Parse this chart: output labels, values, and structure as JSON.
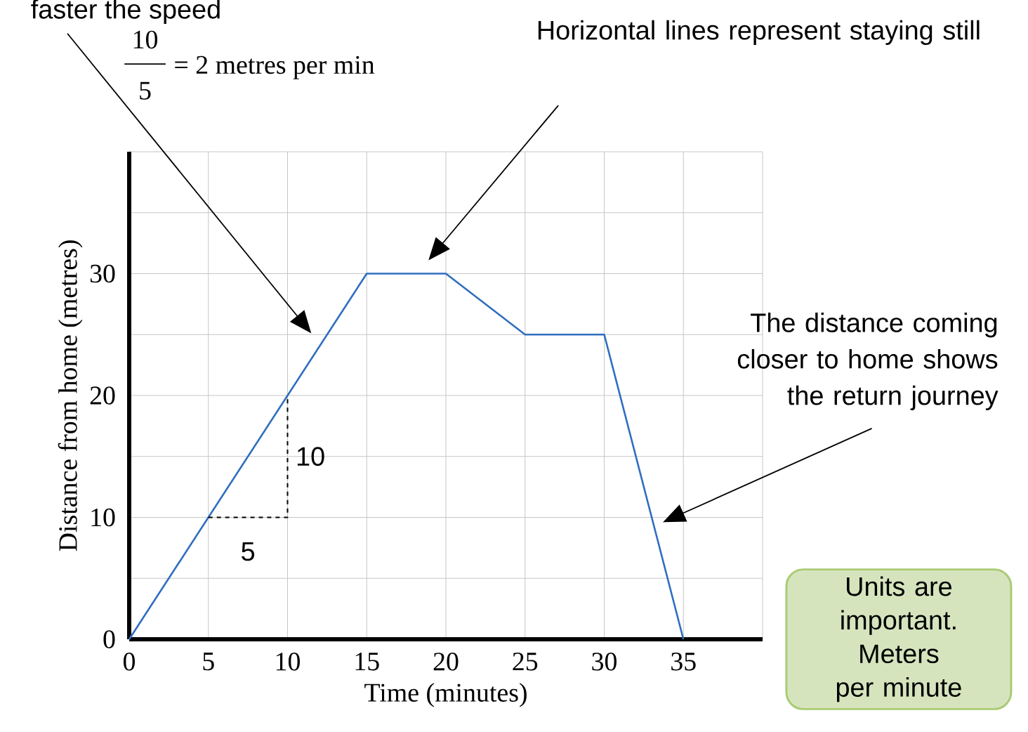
{
  "chart_data": {
    "type": "line",
    "xlabel": "Time (minutes)",
    "ylabel": "Distance from home (metres)",
    "series": [
      {
        "color": "#2f6ebf",
        "x": [
          0,
          15,
          20,
          25,
          30,
          35
        ],
        "values": [
          0,
          30,
          30,
          25,
          25,
          0
        ]
      },
      {
        "color": "#000000",
        "x": [
          5,
          10,
          10
        ],
        "values": [
          10,
          10,
          20
        ],
        "line_style": "dashed"
      }
    ],
    "xlim": [
      0,
      40
    ],
    "ylim": [
      0,
      40
    ],
    "xticks": [
      0,
      5,
      10,
      15,
      20,
      25,
      30,
      35,
      {
        "value": 40,
        "label": null
      }
    ],
    "yticks": [
      0,
      {
        "value": 5,
        "label": null
      },
      10,
      {
        "value": 15,
        "label": null
      },
      20,
      {
        "value": 25,
        "label": null
      },
      30,
      {
        "value": 35,
        "label": null
      },
      {
        "value": 40,
        "label": null
      }
    ],
    "grid": true,
    "annotations": [
      "faster the speed",
      "10",
      "5",
      "= 2 metres per min",
      "Horizontal lines represent staying still",
      "The distance coming closer to home shows the return journey",
      "Units are important. Meters per minute",
      "5",
      "10"
    ]
  }
}
